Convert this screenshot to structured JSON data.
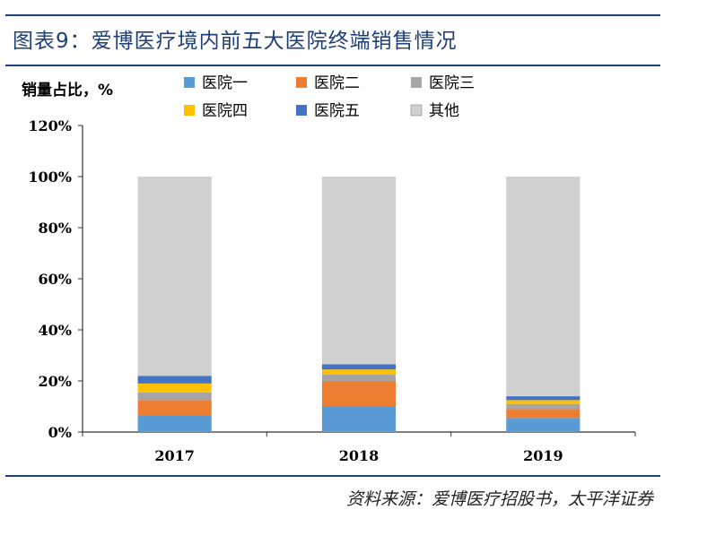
{
  "figure": {
    "title": "图表9：爱博医疗境内前五大医院终端销售情况",
    "source": "资料来源：爱博医疗招股书，太平洋证券"
  },
  "chart_data": {
    "type": "bar",
    "stacked": true,
    "ylabel": "销量占比，%",
    "xlabel": "",
    "categories": [
      "2017",
      "2018",
      "2019"
    ],
    "ylim": [
      0,
      120
    ],
    "yticks": [
      "0%",
      "20%",
      "40%",
      "60%",
      "80%",
      "100%",
      "120%"
    ],
    "series": [
      {
        "name": "医院一",
        "color": "#5b9bd5",
        "values": [
          6.5,
          10.0,
          5.5
        ]
      },
      {
        "name": "医院二",
        "color": "#ed7d31",
        "values": [
          6.0,
          10.0,
          3.5
        ]
      },
      {
        "name": "医院三",
        "color": "#a5a5a5",
        "values": [
          3.0,
          2.5,
          2.0
        ]
      },
      {
        "name": "医院四",
        "color": "#ffc000",
        "values": [
          3.5,
          2.0,
          1.5
        ]
      },
      {
        "name": "医院五",
        "color": "#4472c4",
        "values": [
          3.0,
          2.0,
          1.5
        ]
      },
      {
        "name": "其他",
        "color": "#d0d0d0",
        "values": [
          78.0,
          73.5,
          86.0
        ]
      }
    ],
    "legend_position": "top",
    "grid": false
  }
}
